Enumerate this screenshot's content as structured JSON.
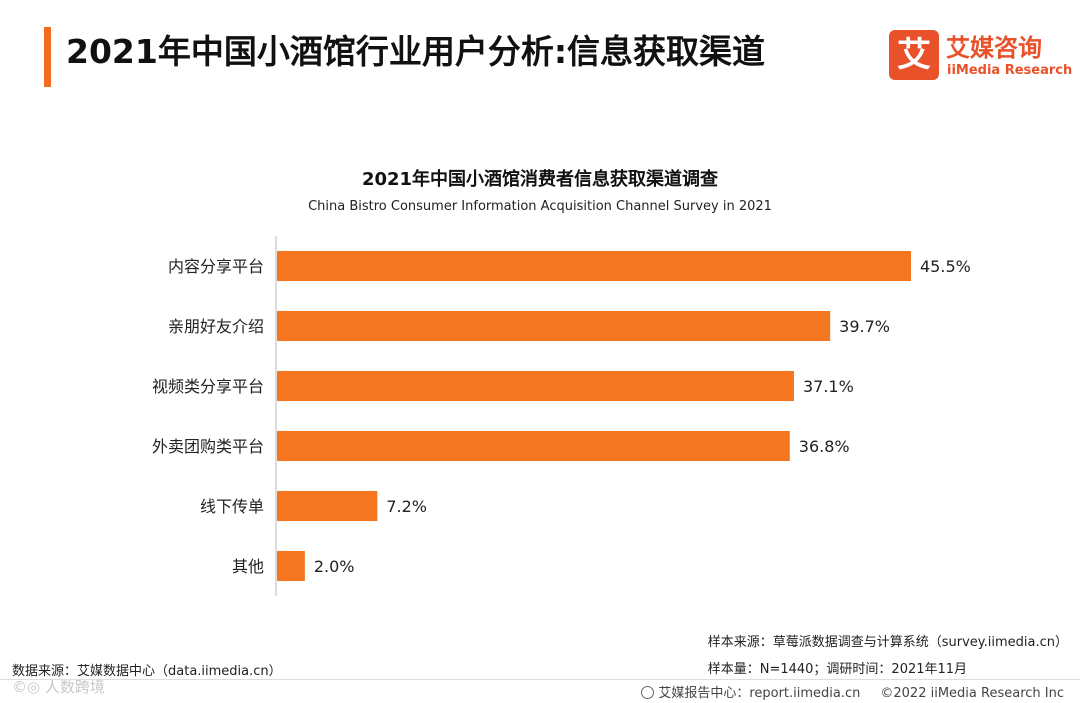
{
  "header": {
    "title": "2021年中国小酒馆行业用户分析:信息获取渠道"
  },
  "logo": {
    "badge_char": "艾",
    "name_cn": "艾媒咨询",
    "name_en": "iiMedia Research"
  },
  "chart_data": {
    "type": "bar",
    "orientation": "horizontal",
    "title": "2021年中国小酒馆消费者信息获取渠道调查",
    "subtitle": "China Bistro Consumer Information Acquisition Channel Survey in 2021",
    "categories": [
      "内容分享平台",
      "亲朋好友介绍",
      "视频类分享平台",
      "外卖团购类平台",
      "线下传单",
      "其他"
    ],
    "values": [
      45.5,
      39.7,
      37.1,
      36.8,
      7.2,
      2.0
    ],
    "value_labels": [
      "45.5%",
      "39.7%",
      "37.1%",
      "36.8%",
      "7.2%",
      "2.0%"
    ],
    "xlim": [
      0,
      50
    ],
    "unit": "%",
    "bar_color": "#f47621",
    "grid": false,
    "legend": "none"
  },
  "footer": {
    "sample_source": "样本来源：草莓派数据调查与计算系统（survey.iimedia.cn）",
    "sample_size": "样本量：N=1440；调研时间：2021年11月",
    "data_source": "数据来源：艾媒数据中心（data.iimedia.cn）",
    "watermark": "©◎ 人数跨境",
    "report_center": "艾媒报告中心：report.iimedia.cn",
    "copyright": "©2022  iiMedia Research  Inc"
  },
  "colors": {
    "accent": "#f26b21",
    "brand": "#e9512a"
  }
}
